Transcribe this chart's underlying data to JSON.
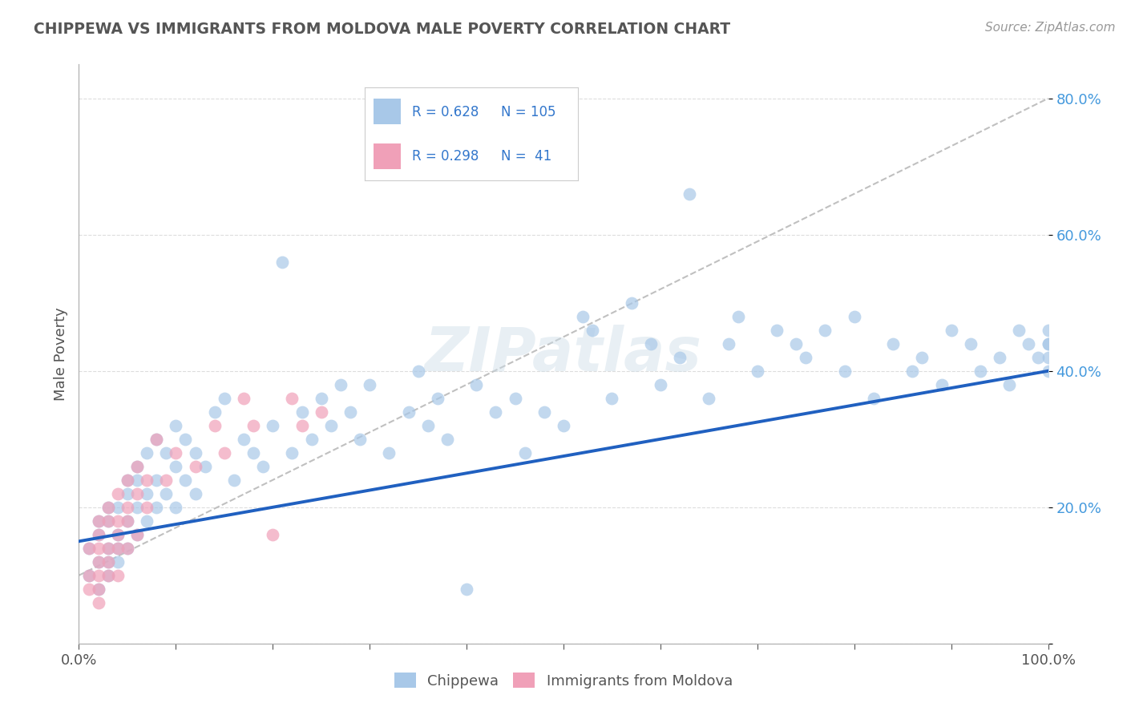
{
  "title": "CHIPPEWA VS IMMIGRANTS FROM MOLDOVA MALE POVERTY CORRELATION CHART",
  "source": "Source: ZipAtlas.com",
  "ylabel": "Male Poverty",
  "watermark": "ZIPatlas",
  "label1": "Chippewa",
  "label2": "Immigrants from Moldova",
  "color1": "#a8c8e8",
  "color2": "#f0a0b8",
  "line_color1": "#2060c0",
  "line_color2": "#c0c0c0",
  "background": "#ffffff",
  "xlim": [
    0.0,
    1.0
  ],
  "ylim": [
    0.0,
    0.85
  ],
  "chippewa_x": [
    0.01,
    0.01,
    0.02,
    0.02,
    0.02,
    0.02,
    0.03,
    0.03,
    0.03,
    0.03,
    0.03,
    0.04,
    0.04,
    0.04,
    0.04,
    0.05,
    0.05,
    0.05,
    0.05,
    0.06,
    0.06,
    0.06,
    0.06,
    0.07,
    0.07,
    0.07,
    0.08,
    0.08,
    0.08,
    0.09,
    0.09,
    0.1,
    0.1,
    0.1,
    0.11,
    0.11,
    0.12,
    0.12,
    0.13,
    0.14,
    0.15,
    0.16,
    0.17,
    0.18,
    0.19,
    0.2,
    0.21,
    0.22,
    0.23,
    0.24,
    0.25,
    0.26,
    0.27,
    0.28,
    0.29,
    0.3,
    0.32,
    0.34,
    0.35,
    0.36,
    0.37,
    0.38,
    0.4,
    0.41,
    0.43,
    0.45,
    0.46,
    0.48,
    0.5,
    0.52,
    0.53,
    0.55,
    0.57,
    0.59,
    0.6,
    0.62,
    0.63,
    0.65,
    0.67,
    0.68,
    0.7,
    0.72,
    0.74,
    0.75,
    0.77,
    0.79,
    0.8,
    0.82,
    0.84,
    0.86,
    0.87,
    0.89,
    0.9,
    0.92,
    0.93,
    0.95,
    0.96,
    0.97,
    0.98,
    0.99,
    1.0,
    1.0,
    1.0,
    1.0,
    1.0
  ],
  "chippewa_y": [
    0.14,
    0.1,
    0.12,
    0.16,
    0.08,
    0.18,
    0.1,
    0.14,
    0.18,
    0.12,
    0.2,
    0.16,
    0.12,
    0.2,
    0.14,
    0.18,
    0.22,
    0.14,
    0.24,
    0.2,
    0.16,
    0.24,
    0.26,
    0.18,
    0.22,
    0.28,
    0.2,
    0.24,
    0.3,
    0.22,
    0.28,
    0.2,
    0.26,
    0.32,
    0.24,
    0.3,
    0.22,
    0.28,
    0.26,
    0.34,
    0.36,
    0.24,
    0.3,
    0.28,
    0.26,
    0.32,
    0.56,
    0.28,
    0.34,
    0.3,
    0.36,
    0.32,
    0.38,
    0.34,
    0.3,
    0.38,
    0.28,
    0.34,
    0.4,
    0.32,
    0.36,
    0.3,
    0.08,
    0.38,
    0.34,
    0.36,
    0.28,
    0.34,
    0.32,
    0.48,
    0.46,
    0.36,
    0.5,
    0.44,
    0.38,
    0.42,
    0.66,
    0.36,
    0.44,
    0.48,
    0.4,
    0.46,
    0.44,
    0.42,
    0.46,
    0.4,
    0.48,
    0.36,
    0.44,
    0.4,
    0.42,
    0.38,
    0.46,
    0.44,
    0.4,
    0.42,
    0.38,
    0.46,
    0.44,
    0.42,
    0.4,
    0.44,
    0.46,
    0.42,
    0.44
  ],
  "moldova_x": [
    0.01,
    0.01,
    0.01,
    0.02,
    0.02,
    0.02,
    0.02,
    0.02,
    0.02,
    0.02,
    0.03,
    0.03,
    0.03,
    0.03,
    0.03,
    0.04,
    0.04,
    0.04,
    0.04,
    0.04,
    0.05,
    0.05,
    0.05,
    0.05,
    0.06,
    0.06,
    0.06,
    0.07,
    0.07,
    0.08,
    0.09,
    0.1,
    0.12,
    0.14,
    0.15,
    0.17,
    0.18,
    0.2,
    0.22,
    0.23,
    0.25
  ],
  "moldova_y": [
    0.1,
    0.14,
    0.08,
    0.12,
    0.16,
    0.06,
    0.1,
    0.14,
    0.08,
    0.18,
    0.1,
    0.14,
    0.18,
    0.12,
    0.2,
    0.14,
    0.18,
    0.1,
    0.22,
    0.16,
    0.2,
    0.14,
    0.24,
    0.18,
    0.22,
    0.16,
    0.26,
    0.2,
    0.24,
    0.3,
    0.24,
    0.28,
    0.26,
    0.32,
    0.28,
    0.36,
    0.32,
    0.16,
    0.36,
    0.32,
    0.34
  ]
}
